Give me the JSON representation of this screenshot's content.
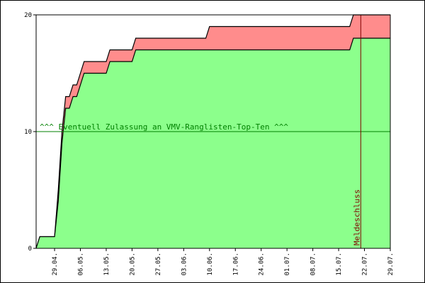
{
  "chart_data": {
    "type": "area",
    "x_start": "2013-04-24",
    "x_end": "2013-07-29",
    "xticks": [
      "29.04.",
      "06.05.",
      "13.05.",
      "20.05.",
      "27.05.",
      "03.06.",
      "10.06.",
      "17.06.",
      "24.06.",
      "01.07.",
      "08.07.",
      "15.07.",
      "22.07.",
      "29.07."
    ],
    "yticks": [
      0,
      10,
      20
    ],
    "ylim": [
      0,
      20
    ],
    "series": [
      {
        "color": "#ff8c8c",
        "points": [
          [
            "2013-04-24",
            0
          ],
          [
            "2013-04-25",
            1
          ],
          [
            "2013-04-28",
            1
          ],
          [
            "2013-04-29",
            1
          ],
          [
            "2013-04-30",
            5
          ],
          [
            "2013-05-01",
            10
          ],
          [
            "2013-05-02",
            13
          ],
          [
            "2013-05-03",
            13
          ],
          [
            "2013-05-04",
            14
          ],
          [
            "2013-05-05",
            14
          ],
          [
            "2013-05-06",
            15
          ],
          [
            "2013-05-07",
            16
          ],
          [
            "2013-05-10",
            16
          ],
          [
            "2013-05-13",
            16
          ],
          [
            "2013-05-14",
            17
          ],
          [
            "2013-05-16",
            17
          ],
          [
            "2013-05-20",
            17
          ],
          [
            "2013-05-21",
            18
          ],
          [
            "2013-05-23",
            18
          ],
          [
            "2013-06-09",
            18
          ],
          [
            "2013-06-10",
            19
          ],
          [
            "2013-06-30",
            19
          ],
          [
            "2013-07-18",
            19
          ],
          [
            "2013-07-19",
            20
          ],
          [
            "2013-07-29",
            20
          ]
        ]
      },
      {
        "color": "#8cff8c",
        "points": [
          [
            "2013-04-24",
            0
          ],
          [
            "2013-04-25",
            1
          ],
          [
            "2013-04-28",
            1
          ],
          [
            "2013-04-29",
            1
          ],
          [
            "2013-04-30",
            4
          ],
          [
            "2013-05-01",
            9
          ],
          [
            "2013-05-02",
            12
          ],
          [
            "2013-05-03",
            12
          ],
          [
            "2013-05-04",
            13
          ],
          [
            "2013-05-05",
            13
          ],
          [
            "2013-05-06",
            14
          ],
          [
            "2013-05-07",
            15
          ],
          [
            "2013-05-10",
            15
          ],
          [
            "2013-05-13",
            15
          ],
          [
            "2013-05-14",
            16
          ],
          [
            "2013-05-16",
            16
          ],
          [
            "2013-05-20",
            16
          ],
          [
            "2013-05-21",
            17
          ],
          [
            "2013-05-23",
            17
          ],
          [
            "2013-06-09",
            17
          ],
          [
            "2013-06-30",
            17
          ],
          [
            "2013-07-18",
            17
          ],
          [
            "2013-07-19",
            18
          ],
          [
            "2013-07-29",
            18
          ]
        ]
      }
    ],
    "threshold": {
      "y": 10,
      "color": "#008000",
      "label": "^^^ Eventuell Zulassung an VMV-Ranglisten-Top-Ten ^^^"
    },
    "marker": {
      "date": "2013-07-21",
      "color": "#800000",
      "label": "Meldeschluss"
    },
    "grid": false
  }
}
